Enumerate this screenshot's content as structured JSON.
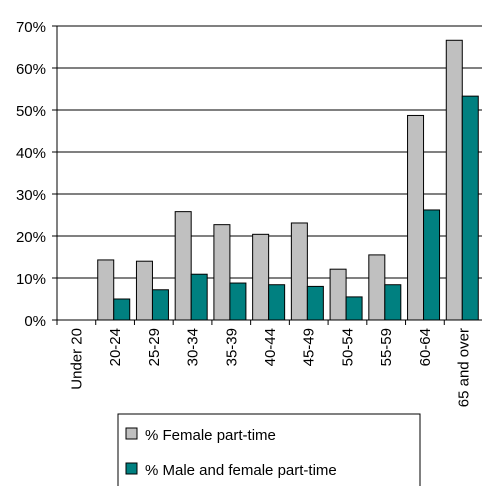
{
  "chart_data": {
    "type": "bar",
    "categories": [
      "Under 20",
      "20-24",
      "25-29",
      "30-34",
      "35-39",
      "40-44",
      "45-49",
      "50-54",
      "55-59",
      "60-64",
      "65 and over"
    ],
    "series": [
      {
        "name": "% Female part-time",
        "color": "#c0c0c0",
        "values": [
          0,
          14.3,
          14.0,
          25.8,
          22.7,
          20.4,
          23.1,
          12.1,
          15.5,
          48.7,
          66.6
        ]
      },
      {
        "name": "% Male and female part-time",
        "color": "#008080",
        "values": [
          0,
          5.0,
          7.2,
          10.9,
          8.8,
          8.4,
          8.0,
          5.5,
          8.4,
          26.2,
          53.3
        ]
      }
    ],
    "yticks": [
      "0%",
      "10%",
      "20%",
      "30%",
      "40%",
      "50%",
      "60%",
      "70%"
    ],
    "ylim": [
      0,
      70
    ],
    "grid": true,
    "legend": "bottom"
  }
}
